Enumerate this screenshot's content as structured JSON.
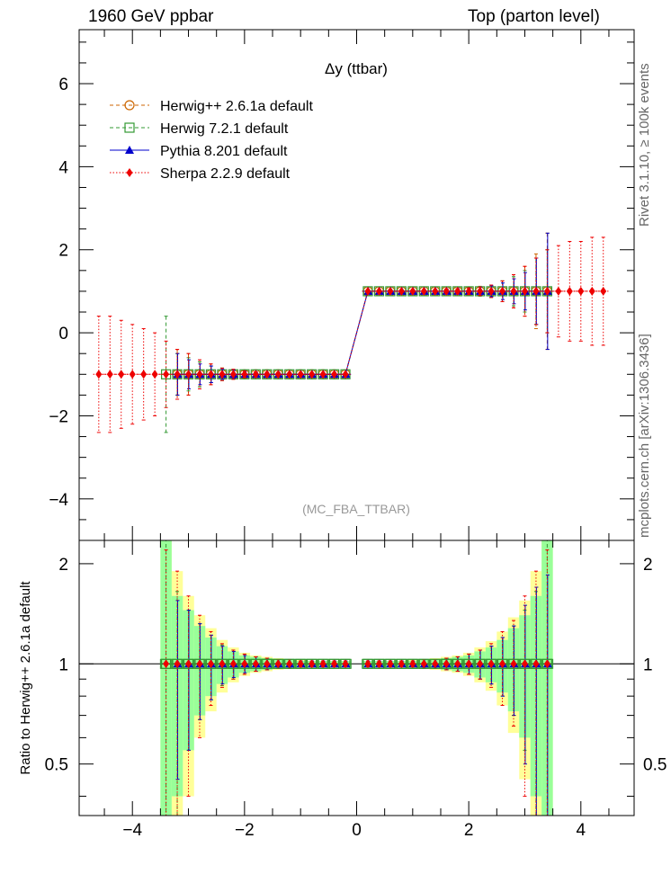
{
  "header": {
    "left": "1960 GeV ppbar",
    "right": "Top (parton level)"
  },
  "side_labels": {
    "rivet": "Rivet 3.1.10, ≥ 100k events",
    "mcplots": "mcplots.cern.ch [arXiv:1306.3436]"
  },
  "colors": {
    "herwig_pp": "#cc6600",
    "herwig7": "#339933",
    "pythia": "#0000cc",
    "sherpa": "#ee0000",
    "band_green": "#99ff99",
    "band_yellow": "#ffff99"
  },
  "chart_data": [
    {
      "type": "line",
      "title": "Δy (ttbar)",
      "watermark": "(MC_FBA_TTBAR)",
      "xlim": [
        -4.95,
        4.95
      ],
      "ylim": [
        -5.0,
        7.3
      ],
      "xticks": [
        -4,
        -2,
        0,
        2,
        4
      ],
      "yticks": [
        -4,
        -2,
        0,
        2,
        4,
        6
      ],
      "xlabel": "",
      "ylabel": "",
      "x": [
        -4.6,
        -4.4,
        -4.2,
        -4.0,
        -3.8,
        -3.6,
        -3.4,
        -3.2,
        -3.0,
        -2.8,
        -2.6,
        -2.4,
        -2.2,
        -2.0,
        -1.8,
        -1.6,
        -1.4,
        -1.2,
        -1.0,
        -0.8,
        -0.6,
        -0.4,
        -0.2,
        0.2,
        0.4,
        0.6,
        0.8,
        1.0,
        1.2,
        1.4,
        1.6,
        1.8,
        2.0,
        2.2,
        2.4,
        2.6,
        2.8,
        3.0,
        3.2,
        3.4,
        3.6,
        3.8,
        4.0,
        4.2,
        4.4
      ],
      "series": [
        {
          "name": "Herwig++ 2.6.1a default",
          "style": "dashed",
          "marker": "open-circle",
          "values": [
            null,
            null,
            null,
            null,
            null,
            null,
            null,
            -1,
            -1,
            -1,
            -1,
            -1,
            -1,
            -1,
            -1,
            -1,
            -1,
            -1,
            -1,
            -1,
            -1,
            -1,
            -1,
            1,
            1,
            1,
            1,
            1,
            1,
            1,
            1,
            1,
            1,
            1,
            1,
            1,
            1,
            1,
            1,
            1,
            null,
            null,
            null,
            null,
            null
          ],
          "errors": [
            null,
            null,
            null,
            null,
            null,
            null,
            null,
            0.6,
            0.5,
            0.3,
            0.25,
            0.15,
            0.12,
            0.08,
            0.06,
            0.05,
            0.04,
            0.03,
            0.03,
            0.03,
            0.03,
            0.03,
            0.03,
            0.03,
            0.03,
            0.03,
            0.03,
            0.03,
            0.03,
            0.04,
            0.05,
            0.06,
            0.08,
            0.12,
            0.15,
            0.25,
            0.4,
            0.6,
            0.9,
            1.4,
            null,
            null,
            null,
            null,
            null
          ]
        },
        {
          "name": "Herwig 7.2.1 default",
          "style": "dashed",
          "marker": "open-square",
          "values": [
            null,
            null,
            null,
            null,
            null,
            null,
            -1,
            -1,
            -1,
            -1,
            -1,
            -1,
            -1,
            -1,
            -1,
            -1,
            -1,
            -1,
            -1,
            -1,
            -1,
            -1,
            -1,
            1,
            1,
            1,
            1,
            1,
            1,
            1,
            1,
            1,
            1,
            1,
            1,
            1,
            1,
            1,
            1,
            1,
            null,
            null,
            null,
            null,
            null
          ],
          "errors": [
            null,
            null,
            null,
            null,
            null,
            null,
            1.4,
            0.5,
            0.4,
            0.3,
            0.2,
            0.15,
            0.1,
            0.08,
            0.06,
            0.05,
            0.04,
            0.03,
            0.03,
            0.03,
            0.03,
            0.03,
            0.03,
            0.03,
            0.03,
            0.03,
            0.03,
            0.03,
            0.03,
            0.04,
            0.05,
            0.06,
            0.08,
            0.1,
            0.15,
            0.25,
            0.35,
            0.5,
            0.8,
            1.0,
            null,
            null,
            null,
            null,
            null
          ]
        },
        {
          "name": "Pythia 8.201 default",
          "style": "solid",
          "marker": "filled-triangle",
          "values": [
            null,
            null,
            null,
            null,
            null,
            null,
            null,
            -1,
            -1,
            -1,
            -1,
            -1,
            -1,
            -1,
            -1,
            -1,
            -1,
            -1,
            -1,
            -1,
            -1,
            -1,
            -1,
            1,
            1,
            1,
            1,
            1,
            1,
            1,
            1,
            1,
            1,
            1,
            1,
            1,
            1,
            1,
            1,
            1,
            null,
            null,
            null,
            null,
            null
          ],
          "errors": [
            null,
            null,
            null,
            null,
            null,
            null,
            null,
            0.5,
            0.35,
            0.25,
            0.2,
            0.12,
            0.1,
            0.07,
            0.05,
            0.04,
            0.04,
            0.03,
            0.03,
            0.03,
            0.03,
            0.03,
            0.03,
            0.03,
            0.03,
            0.03,
            0.03,
            0.03,
            0.03,
            0.04,
            0.05,
            0.06,
            0.07,
            0.1,
            0.13,
            0.2,
            0.3,
            0.45,
            0.8,
            1.4,
            null,
            null,
            null,
            null,
            null
          ]
        },
        {
          "name": "Sherpa 2.2.9 default",
          "style": "dotted",
          "marker": "filled-diamond",
          "values": [
            -1,
            -1,
            -1,
            -1,
            -1,
            -1,
            -1,
            -1,
            -1,
            -1,
            -1,
            -1,
            -1,
            -1,
            -1,
            -1,
            -1,
            -1,
            -1,
            -1,
            -1,
            -1,
            -1,
            1,
            1,
            1,
            1,
            1,
            1,
            1,
            1,
            1,
            1,
            1,
            1,
            1,
            1,
            1,
            1,
            1,
            1,
            1,
            1,
            1,
            1
          ],
          "errors": [
            1.4,
            1.4,
            1.3,
            1.2,
            1.1,
            1.0,
            0.8,
            0.6,
            0.5,
            0.35,
            0.25,
            0.15,
            0.12,
            0.08,
            0.06,
            0.05,
            0.04,
            0.03,
            0.03,
            0.03,
            0.03,
            0.03,
            0.03,
            0.03,
            0.03,
            0.03,
            0.03,
            0.03,
            0.03,
            0.04,
            0.05,
            0.06,
            0.08,
            0.1,
            0.15,
            0.25,
            0.4,
            0.6,
            0.8,
            1.0,
            1.1,
            1.2,
            1.2,
            1.3,
            1.3
          ]
        }
      ]
    },
    {
      "type": "line",
      "title": "",
      "ylabel": "Ratio to Herwig++ 2.6.1a default",
      "xlabel": "",
      "xlim": [
        -4.95,
        4.95
      ],
      "ylim": [
        0.35,
        2.35
      ],
      "xticks": [
        -4,
        -2,
        0,
        2,
        4
      ],
      "yticks": [
        0.5,
        1,
        2
      ],
      "reference_line": 1,
      "x": [
        -3.4,
        -3.2,
        -3.0,
        -2.8,
        -2.6,
        -2.4,
        -2.2,
        -2.0,
        -1.8,
        -1.6,
        -1.4,
        -1.2,
        -1.0,
        -0.8,
        -0.6,
        -0.4,
        -0.2,
        0.2,
        0.4,
        0.6,
        0.8,
        1.0,
        1.2,
        1.4,
        1.6,
        1.8,
        2.0,
        2.2,
        2.4,
        2.6,
        2.8,
        3.0,
        3.2,
        3.4
      ],
      "band_green_halfwidth": [
        1.5,
        0.6,
        0.45,
        0.3,
        0.2,
        0.13,
        0.09,
        0.06,
        0.05,
        0.04,
        0.03,
        0.03,
        0.02,
        0.02,
        0.02,
        0.02,
        0.02,
        0.02,
        0.02,
        0.02,
        0.02,
        0.02,
        0.03,
        0.03,
        0.04,
        0.05,
        0.06,
        0.09,
        0.12,
        0.18,
        0.28,
        0.4,
        0.6,
        1.5
      ],
      "band_yellow_halfwidth": [
        1.5,
        0.9,
        0.6,
        0.4,
        0.28,
        0.18,
        0.12,
        0.08,
        0.06,
        0.05,
        0.04,
        0.03,
        0.03,
        0.02,
        0.02,
        0.02,
        0.02,
        0.02,
        0.02,
        0.02,
        0.02,
        0.03,
        0.03,
        0.04,
        0.05,
        0.06,
        0.08,
        0.12,
        0.17,
        0.25,
        0.38,
        0.55,
        0.9,
        1.5
      ],
      "series": [
        {
          "name": "Herwig 7.2.1 default",
          "values": [
            1,
            1,
            1,
            1,
            1,
            1,
            1,
            1,
            1,
            1,
            1,
            1,
            1,
            1,
            1,
            1,
            1,
            1,
            1,
            1,
            1,
            1,
            1,
            1,
            1,
            1,
            1,
            1,
            1,
            1,
            1,
            1,
            1,
            1
          ],
          "errors": [
            1.5,
            0.65,
            0.45,
            0.32,
            0.22,
            0.14,
            0.1,
            0.07,
            0.05,
            0.04,
            0.03,
            0.03,
            0.02,
            0.02,
            0.02,
            0.02,
            0.02,
            0.02,
            0.02,
            0.02,
            0.02,
            0.02,
            0.03,
            0.03,
            0.04,
            0.05,
            0.07,
            0.1,
            0.13,
            0.2,
            0.3,
            0.45,
            0.65,
            1.5
          ]
        },
        {
          "name": "Pythia 8.201 default",
          "values": [
            null,
            1,
            1,
            1,
            1,
            1,
            1,
            1,
            1,
            1,
            1,
            1,
            1,
            1,
            1,
            1,
            1,
            1,
            1,
            1,
            1,
            1,
            1,
            1,
            1,
            1,
            1,
            1,
            1,
            1,
            1,
            1,
            1,
            1
          ],
          "errors": [
            null,
            0.55,
            0.45,
            0.32,
            0.22,
            0.13,
            0.09,
            0.06,
            0.05,
            0.04,
            0.03,
            0.03,
            0.02,
            0.02,
            0.02,
            0.02,
            0.02,
            0.02,
            0.02,
            0.02,
            0.02,
            0.02,
            0.03,
            0.03,
            0.04,
            0.05,
            0.07,
            0.1,
            0.13,
            0.2,
            0.3,
            0.5,
            0.7,
            0.85
          ]
        },
        {
          "name": "Sherpa 2.2.9 default",
          "values": [
            1,
            1,
            1,
            1,
            1,
            1,
            1,
            1,
            1,
            1,
            1,
            1,
            1,
            1,
            1,
            1,
            1,
            1,
            1,
            1,
            1,
            1,
            1,
            1,
            1,
            1,
            1,
            1,
            1,
            1,
            1,
            1,
            1,
            1
          ],
          "errors": [
            1.2,
            0.9,
            0.6,
            0.4,
            0.25,
            0.15,
            0.1,
            0.07,
            0.05,
            0.04,
            0.03,
            0.03,
            0.02,
            0.02,
            0.02,
            0.02,
            0.02,
            0.02,
            0.02,
            0.02,
            0.02,
            0.02,
            0.03,
            0.03,
            0.04,
            0.05,
            0.07,
            0.1,
            0.15,
            0.25,
            0.35,
            0.6,
            0.9,
            1.2
          ]
        }
      ]
    }
  ]
}
